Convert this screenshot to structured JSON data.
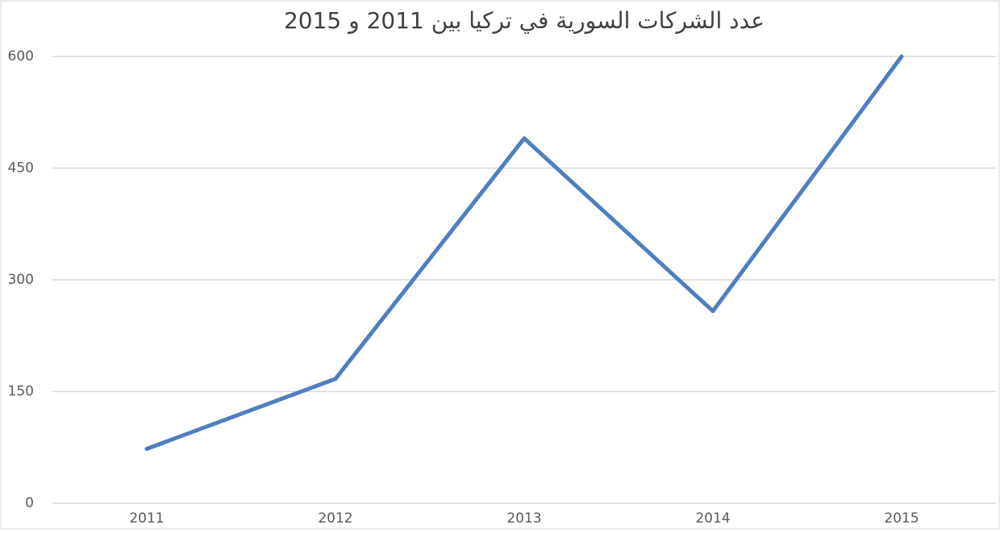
{
  "chart_data": {
    "type": "line",
    "title": "عدد الشركات السورية في تركيا بين 2011 و 2015",
    "categories": [
      "2011",
      "2012",
      "2013",
      "2014",
      "2015"
    ],
    "series": [
      {
        "color": "#4f7fbf",
        "values": [
          73,
          167,
          490,
          258,
          600
        ]
      }
    ],
    "ylim": [
      0,
      600
    ],
    "yticks": [
      0,
      150,
      300,
      450,
      600
    ],
    "grid": true
  }
}
